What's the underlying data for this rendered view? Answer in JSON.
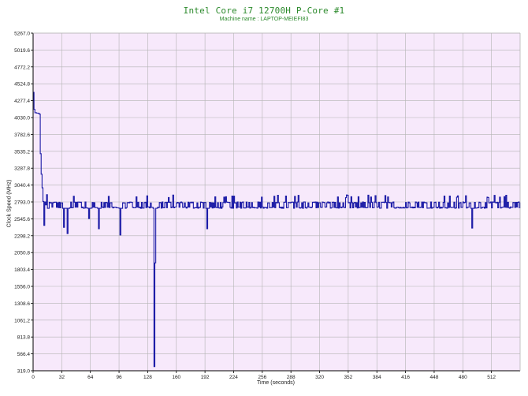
{
  "colors": {
    "title": "#2c8a2c",
    "plot_background": "#f7e9fb",
    "grid": "#b4b4b4",
    "series_line": "#1a1aa6",
    "axis": "#000000"
  },
  "chart_data": {
    "type": "line",
    "title": "Intel Core i7 12700H P-Core #1",
    "subtitle": "Machine name : LAPTOP-MEIEFI83",
    "xlabel": "Time (seconds)",
    "ylabel": "Clock Speed (MHz)",
    "xlim": [
      0,
      544
    ],
    "ylim": [
      319.0,
      5267.0
    ],
    "grid": true,
    "x_ticks": [
      "0",
      "32",
      "64",
      "96",
      "128",
      "160",
      "192",
      "224",
      "256",
      "288",
      "320",
      "352",
      "384",
      "416",
      "448",
      "480",
      "512"
    ],
    "y_ticks": [
      "319.0",
      "566.4",
      "813.8",
      "1061.2",
      "1308.6",
      "1556.0",
      "1803.4",
      "2050.8",
      "2298.2",
      "2545.6",
      "2793.0",
      "3040.4",
      "3287.8",
      "3535.2",
      "3782.6",
      "4030.0",
      "4277.4",
      "4524.8",
      "4772.2",
      "5019.6",
      "5267.0"
    ],
    "baseline": {
      "low": 2700,
      "high": 2793,
      "peak": 2895,
      "from": 12,
      "to": 544
    },
    "series": [
      {
        "values": [
          [
            0,
            4280
          ],
          [
            0.5,
            4400
          ],
          [
            1,
            4150
          ],
          [
            2,
            4100
          ],
          [
            4,
            4095
          ],
          [
            6,
            4090
          ],
          [
            7,
            4080
          ],
          [
            8,
            3500
          ],
          [
            9,
            3200
          ],
          [
            10,
            3000
          ],
          [
            11,
            2800
          ],
          [
            12,
            2450
          ],
          [
            13,
            2793
          ],
          [
            14,
            2750
          ],
          [
            15,
            2900
          ],
          [
            16,
            2700
          ],
          [
            33,
            2700
          ],
          [
            34,
            2420
          ],
          [
            35,
            2700
          ],
          [
            37,
            2700
          ],
          [
            38,
            2330
          ],
          [
            39,
            2700
          ],
          [
            61,
            2700
          ],
          [
            62,
            2550
          ],
          [
            63,
            2700
          ],
          [
            72,
            2700
          ],
          [
            73,
            2400
          ],
          [
            74,
            2700
          ],
          [
            96,
            2700
          ],
          [
            97,
            2310
          ],
          [
            98,
            2700
          ],
          [
            134,
            2700
          ],
          [
            135,
            380
          ],
          [
            136,
            1900
          ],
          [
            137,
            2700
          ],
          [
            193,
            2700
          ],
          [
            194,
            2400
          ],
          [
            195,
            2700
          ],
          [
            489,
            2700
          ],
          [
            490,
            2410
          ],
          [
            491,
            2700
          ]
        ]
      }
    ]
  }
}
